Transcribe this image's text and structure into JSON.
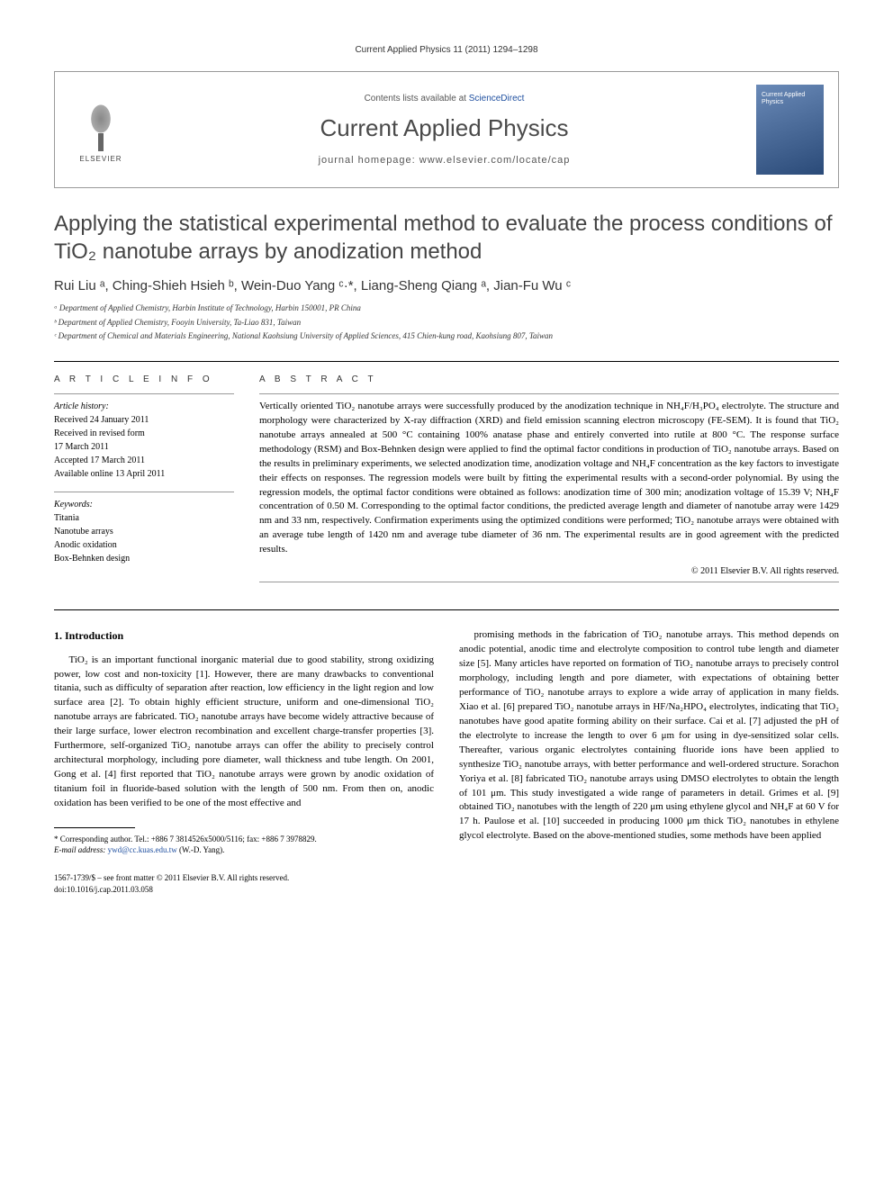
{
  "header": {
    "citation": "Current Applied Physics 11 (2011) 1294–1298"
  },
  "journalBox": {
    "publisher": "ELSEVIER",
    "contentsPrefix": "Contents lists available at ",
    "contentsLink": "ScienceDirect",
    "journalTitle": "Current Applied Physics",
    "homepagePrefix": "journal homepage: ",
    "homepageUrl": "www.elsevier.com/locate/cap",
    "coverTitle": "Current Applied Physics"
  },
  "article": {
    "title": "Applying the statistical experimental method to evaluate the process conditions of TiO₂ nanotube arrays by anodization method",
    "authors": "Rui Liu ᵃ, Ching-Shieh Hsieh ᵇ, Wein-Duo Yang ᶜ·*, Liang-Sheng Qiang ᵃ, Jian-Fu Wu ᶜ",
    "affiliations": [
      "ᵃ Department of Applied Chemistry, Harbin Institute of Technology, Harbin 150001, PR China",
      "ᵇ Department of Applied Chemistry, Fooyin University, Ta-Liao 831, Taiwan",
      "ᶜ Department of Chemical and Materials Engineering, National Kaohsiung University of Applied Sciences, 415 Chien-kung road, Kaohsiung 807, Taiwan"
    ]
  },
  "articleInfo": {
    "heading": "A R T I C L E   I N F O",
    "historyLabel": "Article history:",
    "history": [
      "Received 24 January 2011",
      "Received in revised form",
      "17 March 2011",
      "Accepted 17 March 2011",
      "Available online 13 April 2011"
    ],
    "keywordsLabel": "Keywords:",
    "keywords": [
      "Titania",
      "Nanotube arrays",
      "Anodic oxidation",
      "Box-Behnken design"
    ]
  },
  "abstract": {
    "heading": "A B S T R A C T",
    "text": "Vertically oriented TiO₂ nanotube arrays were successfully produced by the anodization technique in NH₄F/H₃PO₄ electrolyte. The structure and morphology were characterized by X-ray diffraction (XRD) and field emission scanning electron microscopy (FE-SEM). It is found that TiO₂ nanotube arrays annealed at 500 °C containing 100% anatase phase and entirely converted into rutile at 800 °C. The response surface methodology (RSM) and Box-Behnken design were applied to find the optimal factor conditions in production of TiO₂ nanotube arrays. Based on the results in preliminary experiments, we selected anodization time, anodization voltage and NH₄F concentration as the key factors to investigate their effects on responses. The regression models were built by fitting the experimental results with a second-order polynomial. By using the regression models, the optimal factor conditions were obtained as follows: anodization time of 300 min; anodization voltage of 15.39 V; NH₄F concentration of 0.50 M. Corresponding to the optimal factor conditions, the predicted average length and diameter of nanotube array were 1429 nm and 33 nm, respectively. Confirmation experiments using the optimized conditions were performed; TiO₂ nanotube arrays were obtained with an average tube length of 1420 nm and average tube diameter of 36 nm. The experimental results are in good agreement with the predicted results.",
    "copyright": "© 2011 Elsevier B.V. All rights reserved."
  },
  "body": {
    "section1Heading": "1. Introduction",
    "col1": "TiO₂ is an important functional inorganic material due to good stability, strong oxidizing power, low cost and non-toxicity [1]. However, there are many drawbacks to conventional titania, such as difficulty of separation after reaction, low efficiency in the light region and low surface area [2]. To obtain highly efficient structure, uniform and one-dimensional TiO₂ nanotube arrays are fabricated. TiO₂ nanotube arrays have become widely attractive because of their large surface, lower electron recombination and excellent charge-transfer properties [3]. Furthermore, self-organized TiO₂ nanotube arrays can offer the ability to precisely control architectural morphology, including pore diameter, wall thickness and tube length. On 2001, Gong et al. [4] first reported that TiO₂ nanotube arrays were grown by anodic oxidation of titanium foil in fluoride-based solution with the length of 500 nm. From then on, anodic oxidation has been verified to be one of the most effective and",
    "col2": "promising methods in the fabrication of TiO₂ nanotube arrays. This method depends on anodic potential, anodic time and electrolyte composition to control tube length and diameter size [5]. Many articles have reported on formation of TiO₂ nanotube arrays to precisely control morphology, including length and pore diameter, with expectations of obtaining better performance of TiO₂ nanotube arrays to explore a wide array of application in many fields. Xiao et al. [6] prepared TiO₂ nanotube arrays in HF/Na₂HPO₄ electrolytes, indicating that TiO₂ nanotubes have good apatite forming ability on their surface. Cai et al. [7] adjusted the pH of the electrolyte to increase the length to over 6 μm for using in dye-sensitized solar cells. Thereafter, various organic electrolytes containing fluoride ions have been applied to synthesize TiO₂ nanotube arrays, with better performance and well-ordered structure. Sorachon Yoriya et al. [8] fabricated TiO₂ nanotube arrays using DMSO electrolytes to obtain the length of 101 μm. This study investigated a wide range of parameters in detail. Grimes et al. [9] obtained TiO₂ nanotubes with the length of 220 μm using ethylene glycol and NH₄F at 60 V for 17 h. Paulose et al. [10] succeeded in producing 1000 μm thick TiO₂ nanotubes in ethylene glycol electrolyte. Based on the above-mentioned studies, some methods have been applied"
  },
  "footnote": {
    "corresponding": "* Corresponding author. Tel.: +886 7 3814526x5000/5116; fax: +886 7 3978829.",
    "emailLabel": "E-mail address: ",
    "email": "ywd@cc.kuas.edu.tw",
    "emailSuffix": " (W.-D. Yang)."
  },
  "bottom": {
    "line1": "1567-1739/$ – see front matter © 2011 Elsevier B.V. All rights reserved.",
    "line2": "doi:10.1016/j.cap.2011.03.058"
  },
  "colors": {
    "link": "#2050a0",
    "text": "#000000",
    "heading": "#444444"
  }
}
